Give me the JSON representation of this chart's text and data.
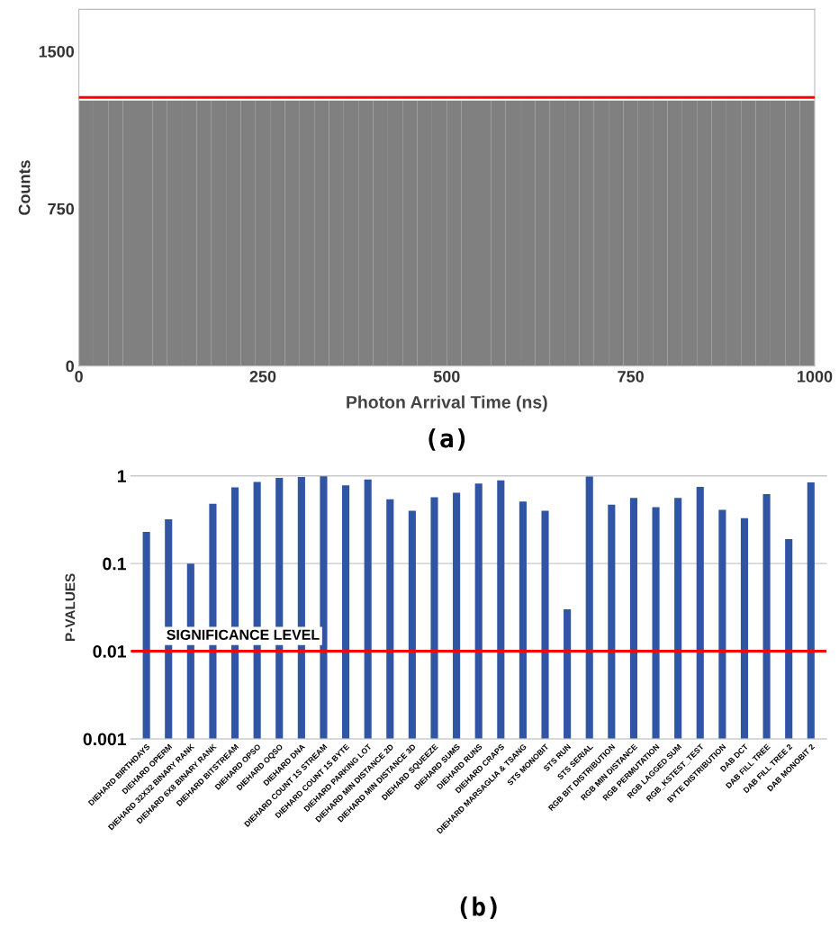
{
  "chart_data": [
    {
      "type": "histogram",
      "xlabel": "Photon Arrival Time (ns)",
      "ylabel": "Counts",
      "color": "#808080",
      "bins": [
        0,
        20,
        40,
        60,
        80,
        100,
        120,
        140,
        160,
        180,
        200,
        220,
        240,
        260,
        280,
        300,
        320,
        340,
        360,
        380,
        400,
        420,
        440,
        460,
        480,
        500,
        520,
        540,
        560,
        580,
        600,
        620,
        640,
        660,
        680,
        700,
        720,
        740,
        760,
        780,
        800,
        820,
        840,
        860,
        880,
        900,
        920,
        940,
        960,
        980,
        1000
      ],
      "values": [
        1265,
        1265,
        1265,
        1265,
        1265,
        1265,
        1265,
        1265,
        1265,
        1265,
        1265,
        1265,
        1265,
        1265,
        1265,
        1265,
        1265,
        1265,
        1265,
        1265,
        1265,
        1265,
        1265,
        1265,
        1265,
        1265,
        1265,
        1265,
        1265,
        1265,
        1265,
        1265,
        1265,
        1265,
        1265,
        1265,
        1265,
        1265,
        1265,
        1265,
        1265,
        1265,
        1265,
        1265,
        1265,
        1265,
        1265,
        1265,
        1265,
        1265
      ],
      "xlim": [
        0,
        1000
      ],
      "xticks": [
        0,
        250,
        500,
        750,
        1000
      ],
      "ylim": [
        0,
        1700
      ],
      "yticks": [
        0,
        750,
        1500
      ],
      "ref_lines": [
        {
          "axis": "y",
          "value": 1280,
          "color": "#ff0000"
        }
      ],
      "grid": false,
      "annotations": [
        "(a)"
      ]
    },
    {
      "type": "bar",
      "ylabel": "P-VALUES",
      "color": "#2f55a4",
      "log": "y",
      "categories": [
        "DIEHARD BIRTHDAYS",
        "DIEHARD OPERM",
        "DIEHARD 32X32 BINARY RANK",
        "DIEHARD 6X8 BINARY RANK",
        "DIEHARD BITSTREAM",
        "DIEHARD OPSO",
        "DIEHARD OQSO",
        "DIEHARD DNA",
        "DIEHARD COUNT 1S STREAM",
        "DIEHARD COUNT 1S BYTE",
        "DIEHARD PARKING LOT",
        "DIEHARD MIN DISTANCE 2D",
        "DIEHARD MIN DISTANCE 3D",
        "DIEHARD SQUEEZE",
        "DIEHARD SUMS",
        "DIEHARD RUNS",
        "DIEHARD CRAPS",
        "DIEHARD MARSAGLIA & TSANG",
        "STS MONOBIT",
        "STS RUN",
        "STS SERIAL",
        "RGB BIT DISTRIBUTION",
        "RGB MIN DISTANCE",
        "RGB PERMUTATION",
        "RGB LAGGED SUM",
        "RGB_KSTEST_TEST",
        "BYTE DISTRIBUTION",
        "DAB DCT",
        "DAB FILL TREE",
        "DAB FILL TREE 2",
        "DAB MONOBIT 2"
      ],
      "values": [
        0.23,
        0.32,
        0.1,
        0.48,
        0.74,
        0.85,
        0.95,
        0.97,
        0.99,
        0.78,
        0.91,
        0.54,
        0.4,
        0.57,
        0.64,
        0.82,
        0.89,
        0.51,
        0.4,
        0.03,
        0.98,
        0.47,
        0.56,
        0.44,
        0.56,
        0.75,
        0.41,
        0.33,
        0.62,
        0.19,
        0.84
      ],
      "ylim": [
        0.001,
        1
      ],
      "yticks": [
        {
          "value": 0.001,
          "label": "0.001"
        },
        {
          "value": 0.01,
          "label": "0.01"
        },
        {
          "value": 0.1,
          "label": "0.1"
        },
        {
          "value": 1,
          "label": "1"
        }
      ],
      "ref_lines": [
        {
          "axis": "y",
          "value": 0.01,
          "label": "SIGNIFICANCE LEVEL",
          "color": "#ff0000"
        }
      ],
      "grid": "y",
      "annotations": [
        "(b)"
      ]
    }
  ]
}
